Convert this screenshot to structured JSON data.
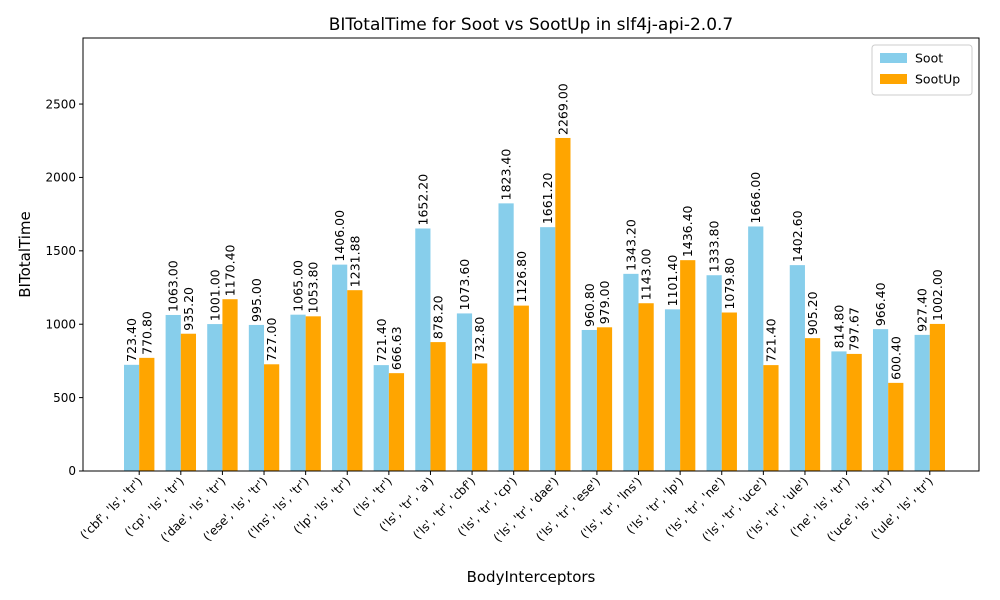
{
  "chart_data": {
    "type": "bar",
    "title": "BITotalTime for Soot vs SootUp in slf4j-api-2.0.7",
    "xlabel": "BodyInterceptors",
    "ylabel": "BITotalTime",
    "ylim": [
      0,
      2950
    ],
    "yticks": [
      0,
      500,
      1000,
      1500,
      2000,
      2500
    ],
    "grid": false,
    "legend_position": "top-right",
    "categories": [
      "('cbf', 'ls', 'tr')",
      "('cp', 'ls', 'tr')",
      "('dae', 'ls', 'tr')",
      "('ese', 'ls', 'tr')",
      "('lns', 'ls', 'tr')",
      "('lp', 'ls', 'tr')",
      "('ls', 'tr')",
      "('ls', 'tr', 'a')",
      "('ls', 'tr', 'cbf')",
      "('ls', 'tr', 'cp')",
      "('ls', 'tr', 'dae')",
      "('ls', 'tr', 'ese')",
      "('ls', 'tr', 'lns')",
      "('ls', 'tr', 'lp')",
      "('ls', 'tr', 'ne')",
      "('ls', 'tr', 'uce')",
      "('ls', 'tr', 'ule')",
      "('ne', 'ls', 'tr')",
      "('uce', 'ls', 'tr')",
      "('ule', 'ls', 'tr')"
    ],
    "series": [
      {
        "name": "Soot",
        "color": "#87ceeb",
        "values": [
          723.4,
          1063.0,
          1001.0,
          995.0,
          1065.0,
          1406.0,
          721.4,
          1652.2,
          1073.6,
          1823.4,
          1661.2,
          960.8,
          1343.2,
          1101.4,
          1333.8,
          1666.0,
          1402.6,
          814.8,
          966.4,
          927.4
        ],
        "labels": [
          "723.40",
          "1063.00",
          "1001.00",
          "995.00",
          "1065.00",
          "1406.00",
          "721.40",
          "1652.20",
          "1073.60",
          "1823.40",
          "1661.20",
          "960.80",
          "1343.20",
          "1101.40",
          "1333.80",
          "1666.00",
          "1402.60",
          "814.80",
          "966.40",
          "927.40"
        ]
      },
      {
        "name": "SootUp",
        "color": "#ffa500",
        "values": [
          770.8,
          935.2,
          1170.4,
          727.0,
          1053.8,
          1231.88,
          666.63,
          878.2,
          732.8,
          1126.8,
          2269.0,
          979.0,
          1143.0,
          1436.4,
          1079.8,
          721.4,
          905.2,
          797.67,
          600.4,
          1002.0
        ],
        "labels": [
          "770.80",
          "935.20",
          "1170.40",
          "727.00",
          "1053.80",
          "1231.88",
          "666.63",
          "878.20",
          "732.80",
          "1126.80",
          "2269.00",
          "979.00",
          "1143.00",
          "1436.40",
          "1079.80",
          "721.40",
          "905.20",
          "797.67",
          "600.40",
          "1002.00"
        ]
      }
    ]
  }
}
